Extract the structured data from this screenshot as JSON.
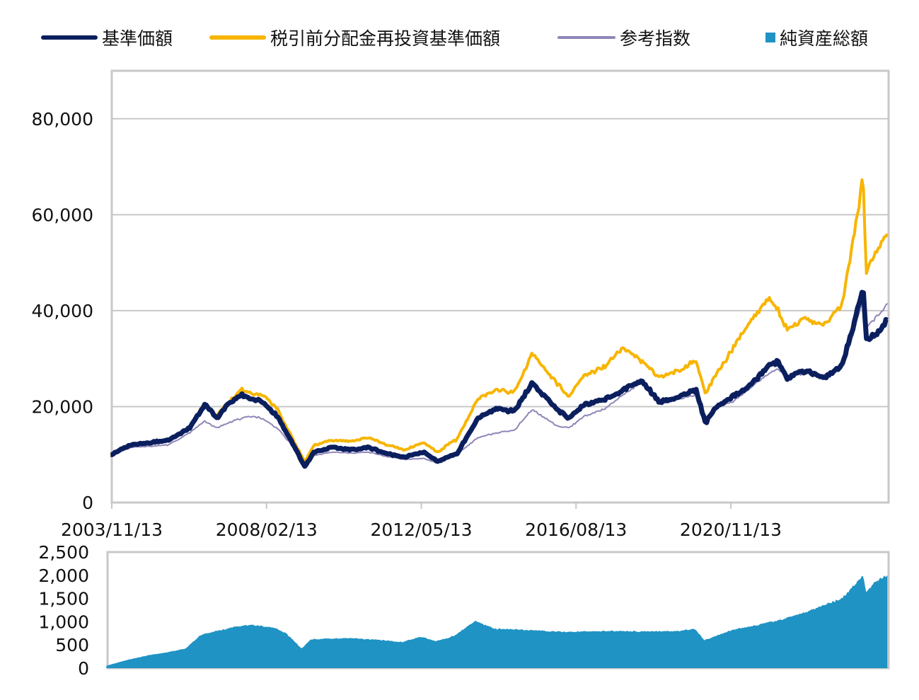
{
  "legend": [
    {
      "label": "基準価額",
      "color": "#0b1f5e",
      "kind": "line"
    },
    {
      "label": "税引前分配金再投資基準価額",
      "color": "#f7b500",
      "kind": "line"
    },
    {
      "label": "参考指数",
      "color": "#8f86b8",
      "kind": "line"
    },
    {
      "label": "純資産総額",
      "color": "#1f93c4",
      "kind": "area"
    }
  ],
  "chart_data": [
    {
      "type": "line",
      "title": "",
      "x_ticks": [
        "2003/11/13",
        "2008/02/13",
        "2012/05/13",
        "2016/08/13",
        "2020/11/13"
      ],
      "x_range": [
        "2003/11/13",
        "2025/03/13"
      ],
      "ylim": [
        0,
        90000
      ],
      "y_ticks": [
        0,
        20000,
        40000,
        60000,
        80000
      ],
      "y_tick_labels": [
        "0",
        "20,000",
        "40,000",
        "60,000",
        "80,000"
      ],
      "grid": true,
      "legend_position": "top",
      "x": [
        "2003/11",
        "2004/06",
        "2005/01",
        "2005/06",
        "2006/01",
        "2006/06",
        "2006/10",
        "2007/01",
        "2007/06",
        "2007/10",
        "2008/01",
        "2008/06",
        "2008/10",
        "2009/03",
        "2009/06",
        "2009/12",
        "2010/06",
        "2010/12",
        "2011/06",
        "2011/12",
        "2012/06",
        "2012/11",
        "2013/03",
        "2013/05",
        "2013/12",
        "2014/06",
        "2014/12",
        "2015/06",
        "2015/08",
        "2016/02",
        "2016/06",
        "2016/11",
        "2017/06",
        "2017/12",
        "2018/06",
        "2018/12",
        "2019/06",
        "2019/12",
        "2020/03",
        "2020/06",
        "2020/12",
        "2021/06",
        "2021/12",
        "2022/03",
        "2022/06",
        "2022/12",
        "2023/06",
        "2023/12",
        "2024/03",
        "2024/07",
        "2024/08",
        "2024/12",
        "2025/03"
      ],
      "series": [
        {
          "name": "基準価額",
          "color": "#0b1f5e",
          "values": [
            10000,
            12000,
            12500,
            13000,
            15500,
            20500,
            17500,
            20000,
            22500,
            21500,
            21000,
            18000,
            13500,
            7500,
            10500,
            11500,
            11000,
            11500,
            10200,
            9500,
            10500,
            8500,
            9800,
            10000,
            17500,
            19500,
            19000,
            25000,
            23500,
            19500,
            17500,
            20500,
            21500,
            23500,
            25500,
            21000,
            22000,
            23500,
            16500,
            19500,
            22000,
            24500,
            28500,
            29500,
            26000,
            27500,
            26000,
            28500,
            35000,
            45000,
            34000,
            35500,
            38000
          ]
        },
        {
          "name": "税引前分配金再投資基準価額",
          "color": "#f7b500",
          "values": [
            10000,
            12000,
            12500,
            13000,
            15500,
            20800,
            18000,
            20500,
            23500,
            22500,
            22500,
            19500,
            14500,
            8500,
            12000,
            13000,
            12800,
            13500,
            12000,
            11000,
            12500,
            10500,
            12500,
            13000,
            21500,
            23500,
            23000,
            31000,
            29500,
            25000,
            22000,
            26500,
            28500,
            32500,
            29500,
            26000,
            27500,
            29500,
            22500,
            26000,
            32000,
            38000,
            42500,
            40000,
            36000,
            38500,
            37000,
            41000,
            52000,
            68000,
            48000,
            53000,
            56000
          ]
        },
        {
          "name": "参考指数",
          "color": "#8f86b8",
          "values": [
            10000,
            11500,
            11800,
            12000,
            14500,
            17000,
            15500,
            16500,
            17500,
            18000,
            17500,
            15500,
            12500,
            8000,
            9800,
            10500,
            10300,
            10500,
            9600,
            9000,
            9200,
            8200,
            9500,
            10000,
            13500,
            14500,
            15000,
            19500,
            18500,
            16000,
            15500,
            18000,
            19500,
            22500,
            25000,
            20500,
            21500,
            22500,
            17500,
            19500,
            21000,
            24000,
            27000,
            28000,
            26000,
            27000,
            26500,
            28000,
            33500,
            42500,
            36500,
            39000,
            41500
          ]
        }
      ]
    },
    {
      "type": "area",
      "title": "",
      "ylim": [
        0,
        2500
      ],
      "y_ticks": [
        0,
        500,
        1000,
        1500,
        2000,
        2500
      ],
      "y_tick_labels": [
        "0",
        "500",
        "1,000",
        "1,500",
        "2,000",
        "2,500"
      ],
      "grid": false,
      "x": [
        "2003/11",
        "2004/06",
        "2005/01",
        "2005/06",
        "2006/01",
        "2006/06",
        "2007/01",
        "2007/06",
        "2007/10",
        "2008/06",
        "2008/10",
        "2009/03",
        "2009/06",
        "2010/06",
        "2011/06",
        "2011/12",
        "2012/06",
        "2012/11",
        "2013/03",
        "2013/05",
        "2013/12",
        "2014/06",
        "2015/06",
        "2016/02",
        "2016/06",
        "2017/06",
        "2018/06",
        "2019/06",
        "2019/12",
        "2020/03",
        "2020/12",
        "2021/06",
        "2021/12",
        "2022/06",
        "2022/12",
        "2023/06",
        "2023/12",
        "2024/03",
        "2024/07",
        "2024/08",
        "2024/12",
        "2025/03"
      ],
      "series": [
        {
          "name": "純資産総額",
          "color": "#1f93c4",
          "values": [
            50,
            180,
            280,
            330,
            420,
            720,
            830,
            900,
            930,
            870,
            750,
            420,
            620,
            650,
            600,
            560,
            680,
            580,
            650,
            700,
            1020,
            850,
            820,
            790,
            780,
            800,
            790,
            800,
            840,
            600,
            820,
            900,
            980,
            1080,
            1200,
            1350,
            1500,
            1700,
            2000,
            1650,
            1900,
            2000
          ]
        }
      ]
    }
  ]
}
